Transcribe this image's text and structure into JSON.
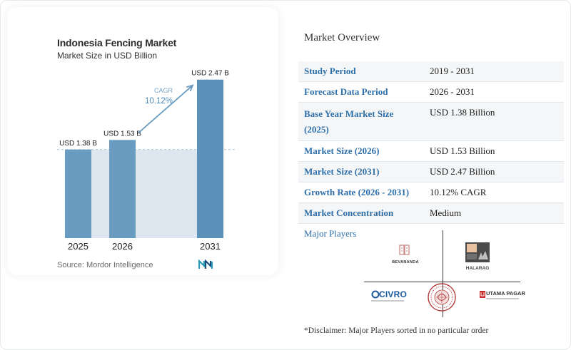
{
  "chart_data": {
    "type": "bar",
    "title": "Indonesia Fencing Market",
    "subtitle": "Market Size in USD Billion",
    "categories": [
      "2025",
      "2026",
      "2031"
    ],
    "values": [
      1.38,
      1.53,
      2.47
    ],
    "value_labels": [
      "USD 1.38 B",
      "USD 1.53 B",
      "USD 2.47 B"
    ],
    "ylim": [
      0,
      2.6
    ],
    "grid": false,
    "reference_line_value": 1.38,
    "cagr": {
      "label": "CAGR",
      "value": "10.12%"
    },
    "colors": {
      "bar": "#6a9cc1",
      "bar_highlight": "#5b91b9",
      "shade": "#dde6ef",
      "arrow": "#6a9cc1",
      "cagr_text": "#4d8bbf"
    },
    "source": "Source:  Mordor Intelligence"
  },
  "overview": {
    "title": "Market Overview",
    "rows": [
      {
        "key": "Study Period",
        "value": "2019 - 2031"
      },
      {
        "key": "Forecast Data Period",
        "value": "2026 - 2031"
      },
      {
        "key": "Base Year Market Size (2025)",
        "value": "USD 1.38 Billion"
      },
      {
        "key": "Market Size (2026)",
        "value": "USD 1.53 Billion"
      },
      {
        "key": "Market Size (2031)",
        "value": "USD 2.47 Billion"
      },
      {
        "key": "Growth Rate (2026 - 2031)",
        "value": "10.12% CAGR"
      },
      {
        "key": "Market Concentration",
        "value": "Medium"
      }
    ]
  },
  "players": {
    "title": "Major Players",
    "logos": [
      {
        "name": "bevananda-logo",
        "text": "BEVANANDA"
      },
      {
        "name": "halarag-logo",
        "text": "HALARAG"
      },
      {
        "name": "civro-logo",
        "text": "CIVRO"
      },
      {
        "name": "round-seal-logo",
        "text": ""
      },
      {
        "name": "utama-pagar-logo",
        "text": "UTAMA PAGAR"
      }
    ],
    "disclaimer": "*Disclaimer: Major Players sorted in no particular order"
  }
}
